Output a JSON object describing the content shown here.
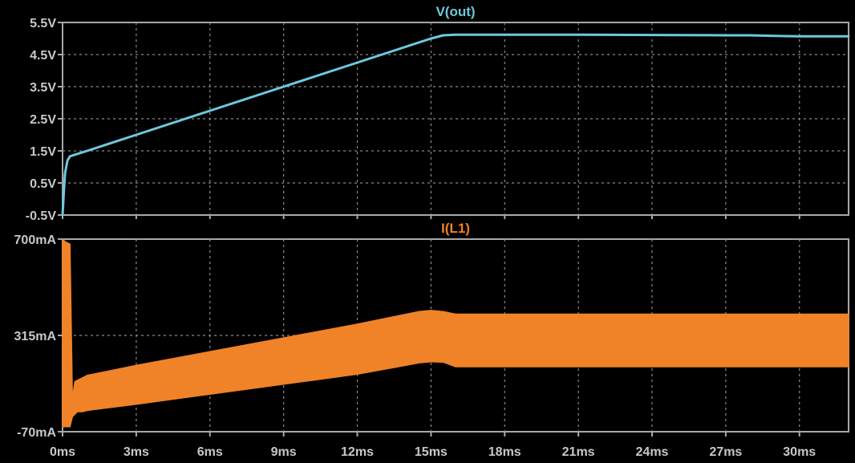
{
  "chart_data": [
    {
      "type": "line",
      "title": "V(out)",
      "xlabel": "",
      "ylabel": "",
      "grid": true,
      "x_ticks": [
        "0ms",
        "3ms",
        "6ms",
        "9ms",
        "12ms",
        "15ms",
        "18ms",
        "21ms",
        "24ms",
        "27ms",
        "30ms"
      ],
      "y_ticks": [
        "5.5V",
        "4.5V",
        "3.5V",
        "2.5V",
        "1.5V",
        "0.5V",
        "-0.5V"
      ],
      "xlim": [
        0,
        32
      ],
      "ylim": [
        -0.5,
        5.5
      ],
      "series": [
        {
          "name": "V(out)",
          "color": "#6ec8dc",
          "x": [
            0,
            0.05,
            0.1,
            0.2,
            0.3,
            0.5,
            1,
            3,
            6,
            9,
            12,
            14,
            15,
            15.5,
            16,
            18,
            21,
            24,
            27,
            28,
            29,
            30,
            32
          ],
          "y": [
            -0.5,
            0.2,
            0.8,
            1.2,
            1.33,
            1.38,
            1.5,
            2.0,
            2.75,
            3.5,
            4.25,
            4.75,
            5.0,
            5.1,
            5.12,
            5.12,
            5.12,
            5.11,
            5.1,
            5.1,
            5.08,
            5.07,
            5.07
          ]
        }
      ]
    },
    {
      "type": "area",
      "title": "I(L1)",
      "xlabel": "",
      "ylabel": "",
      "grid": true,
      "x_ticks": [
        "0ms",
        "3ms",
        "6ms",
        "9ms",
        "12ms",
        "15ms",
        "18ms",
        "21ms",
        "24ms",
        "27ms",
        "30ms"
      ],
      "y_ticks": [
        "700mA",
        "315mA",
        "-70mA"
      ],
      "xlim": [
        0,
        32
      ],
      "ylim": [
        -70,
        700
      ],
      "series": [
        {
          "name": "I(L1)",
          "color": "#f08228",
          "x": [
            0,
            0.1,
            0.3,
            0.4,
            0.5,
            0.6,
            0.8,
            1.0,
            3,
            6,
            9,
            12,
            14.5,
            15,
            15.5,
            16,
            17,
            21,
            24,
            27,
            30,
            32
          ],
          "lower": [
            -50,
            -50,
            -50,
            -10,
            0,
            10,
            10,
            15,
            40,
            80,
            120,
            160,
            205,
            210,
            208,
            190,
            190,
            190,
            190,
            190,
            190,
            190
          ],
          "upper": [
            700,
            690,
            680,
            60,
            130,
            135,
            145,
            155,
            195,
            250,
            305,
            360,
            410,
            415,
            410,
            400,
            400,
            400,
            400,
            400,
            400,
            400
          ]
        }
      ]
    }
  ]
}
